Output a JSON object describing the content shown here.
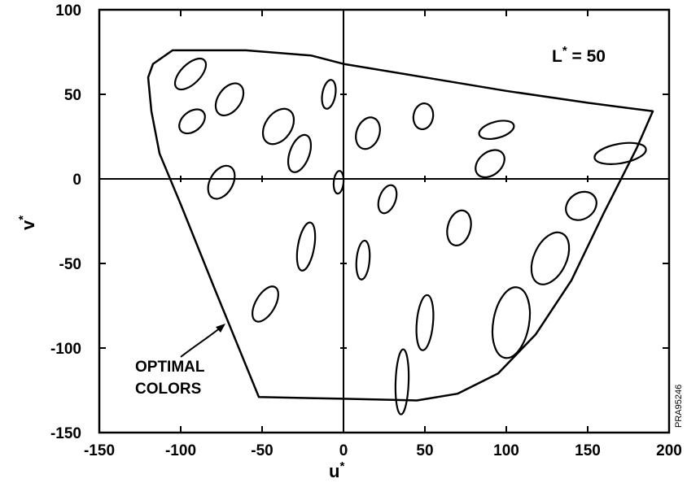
{
  "chart_data": {
    "type": "scatter",
    "xlabel": "u",
    "xlabel_sup": "*",
    "ylabel": "v",
    "ylabel_sup": "*",
    "xlim": [
      -150,
      200
    ],
    "ylim": [
      -150,
      100
    ],
    "xticks": [
      -150,
      -100,
      -50,
      0,
      50,
      100,
      150,
      200
    ],
    "yticks": [
      -150,
      -100,
      -50,
      0,
      50,
      100
    ],
    "xtick_labels": [
      "-150",
      "-100",
      "-50",
      "0",
      "50",
      "100",
      "150",
      "200"
    ],
    "ytick_labels": [
      "-150",
      "-100",
      "-50",
      "0",
      "50",
      "100"
    ],
    "grid": false,
    "lightness_label": {
      "prefix": "L",
      "sup": "*",
      "suffix": " = 50"
    },
    "boundary_label_lines": [
      "OPTIMAL",
      "COLORS"
    ],
    "plate_id": "PRA95246",
    "optimal_colors_boundary": [
      [
        -117,
        68
      ],
      [
        -105,
        76
      ],
      [
        -60,
        76
      ],
      [
        -20,
        73
      ],
      [
        0,
        68
      ],
      [
        50,
        60
      ],
      [
        100,
        52
      ],
      [
        150,
        45
      ],
      [
        190,
        40
      ],
      [
        180,
        18
      ],
      [
        160,
        -20
      ],
      [
        140,
        -60
      ],
      [
        118,
        -92
      ],
      [
        95,
        -115
      ],
      [
        70,
        -127
      ],
      [
        45,
        -131
      ],
      [
        0,
        -130
      ],
      [
        -52,
        -129
      ],
      [
        -80,
        -63
      ],
      [
        -100,
        -15
      ],
      [
        -113,
        15
      ],
      [
        -118,
        40
      ],
      [
        -120,
        60
      ],
      [
        -117,
        68
      ]
    ],
    "ellipses": [
      {
        "u": -94,
        "v": 62,
        "a": 12,
        "b": 6,
        "angle_deg": -45
      },
      {
        "u": -70,
        "v": 47,
        "a": 11,
        "b": 7,
        "angle_deg": -55
      },
      {
        "u": -93,
        "v": 34,
        "a": 9,
        "b": 6,
        "angle_deg": -40
      },
      {
        "u": -40,
        "v": 31,
        "a": 12,
        "b": 8,
        "angle_deg": -55
      },
      {
        "u": -27,
        "v": 15,
        "a": 12,
        "b": 6,
        "angle_deg": -70
      },
      {
        "u": -9,
        "v": 50,
        "a": 9,
        "b": 4,
        "angle_deg": -80
      },
      {
        "u": 15,
        "v": 27,
        "a": 10,
        "b": 7,
        "angle_deg": -70
      },
      {
        "u": 49,
        "v": 37,
        "a": 8,
        "b": 6,
        "angle_deg": -80
      },
      {
        "u": 94,
        "v": 29,
        "a": 11,
        "b": 5,
        "angle_deg": -15
      },
      {
        "u": 90,
        "v": 9,
        "a": 10,
        "b": 7,
        "angle_deg": -40
      },
      {
        "u": 170,
        "v": 15,
        "a": 16,
        "b": 6,
        "angle_deg": -10
      },
      {
        "u": -75,
        "v": -2,
        "a": 11,
        "b": 7,
        "angle_deg": -60
      },
      {
        "u": -3,
        "v": -2,
        "a": 7,
        "b": 3,
        "angle_deg": -85
      },
      {
        "u": 27,
        "v": -12,
        "a": 9,
        "b": 5,
        "angle_deg": -70
      },
      {
        "u": 146,
        "v": -16,
        "a": 10,
        "b": 8,
        "angle_deg": -35
      },
      {
        "u": -23,
        "v": -40,
        "a": 15,
        "b": 5,
        "angle_deg": -80
      },
      {
        "u": 12,
        "v": -48,
        "a": 12,
        "b": 4,
        "angle_deg": -85
      },
      {
        "u": 71,
        "v": -29,
        "a": 11,
        "b": 7,
        "angle_deg": -75
      },
      {
        "u": 127,
        "v": -47,
        "a": 17,
        "b": 10,
        "angle_deg": -65
      },
      {
        "u": -48,
        "v": -74,
        "a": 12,
        "b": 6,
        "angle_deg": -60
      },
      {
        "u": 50,
        "v": -85,
        "a": 17,
        "b": 5,
        "angle_deg": -85
      },
      {
        "u": 103,
        "v": -85,
        "a": 22,
        "b": 11,
        "angle_deg": -80
      },
      {
        "u": 36,
        "v": -120,
        "a": 20,
        "b": 4,
        "angle_deg": -88
      }
    ]
  }
}
